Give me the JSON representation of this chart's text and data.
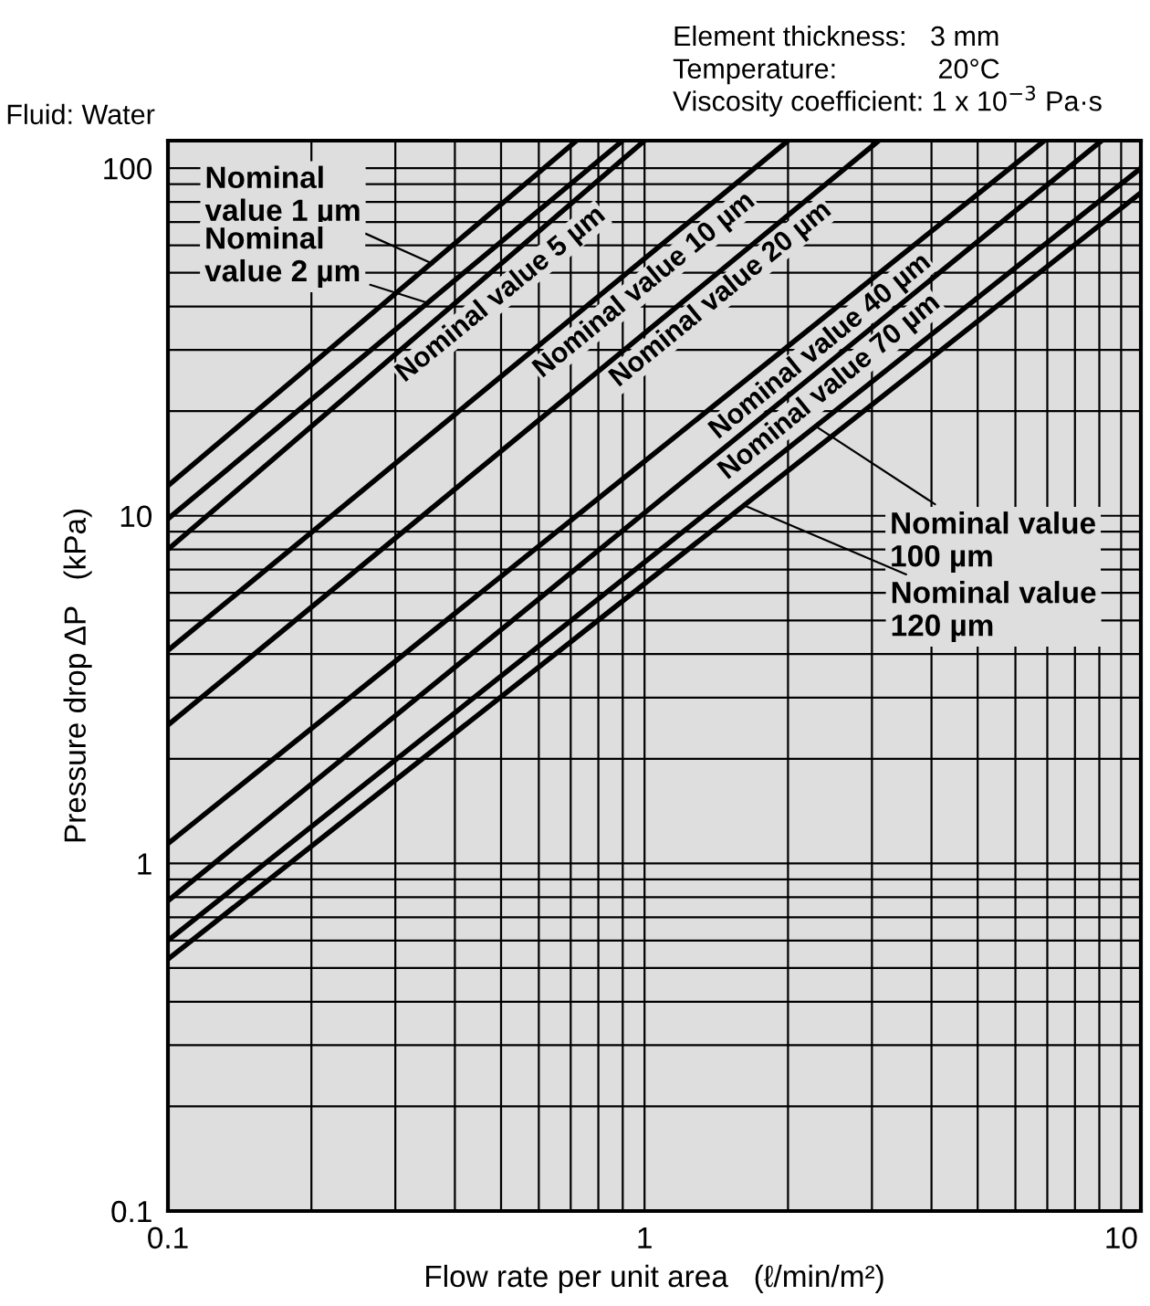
{
  "chart_data": {
    "type": "line",
    "xlabel": "Flow rate per unit area   (ℓ/min/m²)",
    "ylabel": "Pressure drop ΔP   (kPa)",
    "log": "xy",
    "grid": true,
    "marker": "none",
    "line_style": "solid",
    "xlim": [
      0.1,
      11
    ],
    "ylim": [
      0.1,
      120
    ],
    "xticks": [
      0.1,
      {
        "value": 0.2,
        "label": null
      },
      {
        "value": 0.3,
        "label": null
      },
      {
        "value": 0.4,
        "label": null
      },
      {
        "value": 0.5,
        "label": null
      },
      {
        "value": 0.6,
        "label": null
      },
      {
        "value": 0.7,
        "label": null
      },
      {
        "value": 0.8,
        "label": null
      },
      {
        "value": 0.9,
        "label": null
      },
      1,
      {
        "value": 2,
        "label": null
      },
      {
        "value": 3,
        "label": null
      },
      {
        "value": 4,
        "label": null
      },
      {
        "value": 5,
        "label": null
      },
      {
        "value": 6,
        "label": null
      },
      {
        "value": 7,
        "label": null
      },
      {
        "value": 8,
        "label": null
      },
      {
        "value": 9,
        "label": null
      },
      10
    ],
    "yticks": [
      0.1,
      {
        "value": 0.2,
        "label": null
      },
      {
        "value": 0.3,
        "label": null
      },
      {
        "value": 0.4,
        "label": null
      },
      {
        "value": 0.5,
        "label": null
      },
      {
        "value": 0.6,
        "label": null
      },
      {
        "value": 0.7,
        "label": null
      },
      {
        "value": 0.8,
        "label": null
      },
      {
        "value": 0.9,
        "label": null
      },
      1,
      {
        "value": 2,
        "label": null
      },
      {
        "value": 3,
        "label": null
      },
      {
        "value": 4,
        "label": null
      },
      {
        "value": 5,
        "label": null
      },
      {
        "value": 6,
        "label": null
      },
      {
        "value": 7,
        "label": null
      },
      {
        "value": 8,
        "label": null
      },
      {
        "value": 9,
        "label": null
      },
      10,
      {
        "value": 20,
        "label": null
      },
      {
        "value": 30,
        "label": null
      },
      {
        "value": 40,
        "label": null
      },
      {
        "value": 50,
        "label": null
      },
      {
        "value": 60,
        "label": null
      },
      {
        "value": 70,
        "label": null
      },
      {
        "value": 80,
        "label": null
      },
      {
        "value": 90,
        "label": null
      },
      100
    ],
    "series": [
      {
        "color": "#000000",
        "x": [
          0.1,
          0.72
        ],
        "values": [
          12.2,
          120
        ]
      },
      {
        "color": "#000000",
        "x": [
          0.1,
          0.9
        ],
        "values": [
          9.8,
          120
        ]
      },
      {
        "color": "#000000",
        "x": [
          0.1,
          1.0
        ],
        "values": [
          8.0,
          120
        ]
      },
      {
        "color": "#000000",
        "x": [
          0.1,
          2.0
        ],
        "values": [
          4.1,
          120
        ]
      },
      {
        "color": "#000000",
        "x": [
          0.1,
          3.1
        ],
        "values": [
          2.5,
          120
        ]
      },
      {
        "color": "#000000",
        "x": [
          0.1,
          6.9
        ],
        "values": [
          1.14,
          120
        ]
      },
      {
        "color": "#000000",
        "x": [
          0.1,
          9.1
        ],
        "values": [
          0.78,
          120
        ]
      },
      {
        "color": "#000000",
        "x": [
          0.1,
          11
        ],
        "values": [
          0.6,
          100
        ]
      },
      {
        "color": "#000000",
        "x": [
          0.1,
          11
        ],
        "values": [
          0.53,
          85
        ]
      }
    ],
    "annotations": [
      "Element thickness:   3 mm",
      "Temperature:             20°C",
      "Viscosity coefficient: 1 x 10$^{−3}$ Pa·s",
      "Fluid: Water",
      {
        "text": "Nominal\nvalue 1 µm",
        "x": 0.36,
        "y": 53
      },
      {
        "text": "Nominal\nvalue 2 µm",
        "x": 0.35,
        "y": 41
      },
      {
        "text": "Nominal value 5 µm",
        "x": 0.47,
        "y": 48
      },
      {
        "text": "Nominal value 10 µm",
        "x": 0.94,
        "y": 51
      },
      {
        "text": "Nominal value 20 µm",
        "x": 1.36,
        "y": 48
      },
      {
        "text": "Nominal value 40 µm",
        "x": 2.2,
        "y": 34
      },
      {
        "text": "Nominal value 70 µm",
        "x": 2.3,
        "y": 26
      },
      {
        "text": "Nominal value\n100 µm",
        "x": 2.3,
        "y": 18
      },
      {
        "text": "Nominal value\n120 µm",
        "x": 1.62,
        "y": 10.7
      }
    ]
  }
}
